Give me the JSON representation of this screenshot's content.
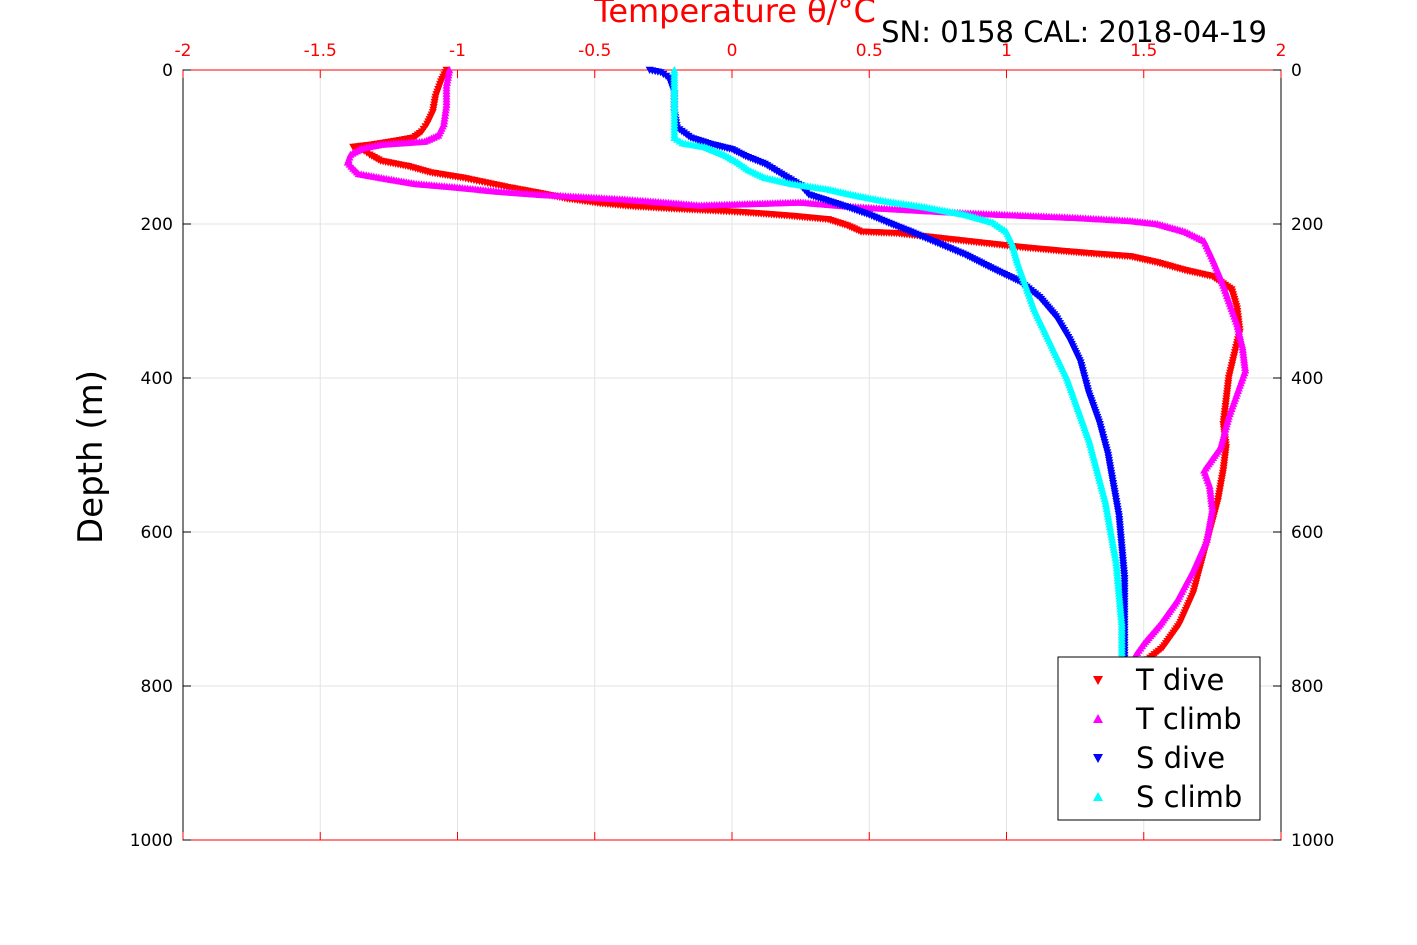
{
  "chart_data": {
    "type": "scatter",
    "title": "SN: 0158  CAL: 2018-04-19",
    "xlabel": "Temperature θ/°C",
    "ylabel": "Depth (m)",
    "xlim": [
      -2,
      2
    ],
    "ylim": [
      0,
      1000
    ],
    "y_reversed": true,
    "x_axis_position": "top",
    "x_axis_color": "#ff0000",
    "grid": true,
    "legend_position": "bottom-right",
    "x_ticks": [
      "-2",
      "-1.5",
      "-1",
      "-0.5",
      "0",
      "0.5",
      "1",
      "1.5",
      "2"
    ],
    "x_tick_values": [
      -2,
      -1.5,
      -1,
      -0.5,
      0,
      0.5,
      1,
      1.5,
      2
    ],
    "y_ticks": [
      "0",
      "200",
      "400",
      "600",
      "800",
      "1000"
    ],
    "y_tick_values": [
      0,
      200,
      400,
      600,
      800,
      1000
    ],
    "series": [
      {
        "name": "T dive",
        "color": "#ff0000",
        "marker": "triangle-down",
        "points": [
          [
            -1.04,
            0
          ],
          [
            -1.06,
            15
          ],
          [
            -1.08,
            35
          ],
          [
            -1.09,
            55
          ],
          [
            -1.11,
            70
          ],
          [
            -1.13,
            80
          ],
          [
            -1.16,
            88
          ],
          [
            -1.24,
            93
          ],
          [
            -1.31,
            97
          ],
          [
            -1.38,
            100
          ],
          [
            -1.34,
            105
          ],
          [
            -1.32,
            110
          ],
          [
            -1.28,
            118
          ],
          [
            -1.18,
            125
          ],
          [
            -1.1,
            133
          ],
          [
            -0.98,
            140
          ],
          [
            -0.9,
            146
          ],
          [
            -0.82,
            152
          ],
          [
            -0.7,
            160
          ],
          [
            -0.6,
            167
          ],
          [
            -0.48,
            173
          ],
          [
            -0.36,
            177
          ],
          [
            -0.22,
            180
          ],
          [
            -0.05,
            183
          ],
          [
            0.05,
            185
          ],
          [
            0.2,
            189
          ],
          [
            0.35,
            194
          ],
          [
            0.42,
            202
          ],
          [
            0.47,
            210
          ],
          [
            0.6,
            212
          ],
          [
            0.75,
            218
          ],
          [
            0.9,
            224
          ],
          [
            1.05,
            230
          ],
          [
            1.2,
            235
          ],
          [
            1.3,
            238
          ],
          [
            1.45,
            242
          ],
          [
            1.55,
            250
          ],
          [
            1.65,
            260
          ],
          [
            1.75,
            268
          ],
          [
            1.82,
            285
          ],
          [
            1.84,
            310
          ],
          [
            1.85,
            340
          ],
          [
            1.83,
            370
          ],
          [
            1.81,
            400
          ],
          [
            1.8,
            430
          ],
          [
            1.79,
            460
          ],
          [
            1.8,
            490
          ],
          [
            1.79,
            520
          ],
          [
            1.77,
            560
          ],
          [
            1.74,
            600
          ],
          [
            1.71,
            640
          ],
          [
            1.68,
            680
          ],
          [
            1.63,
            720
          ],
          [
            1.57,
            750
          ],
          [
            1.5,
            770
          ]
        ]
      },
      {
        "name": "T climb",
        "color": "#ff00ff",
        "marker": "triangle-up",
        "points": [
          [
            -1.03,
            0
          ],
          [
            -1.04,
            20
          ],
          [
            -1.04,
            45
          ],
          [
            -1.05,
            70
          ],
          [
            -1.07,
            85
          ],
          [
            -1.12,
            93
          ],
          [
            -1.28,
            97
          ],
          [
            -1.35,
            102
          ],
          [
            -1.39,
            110
          ],
          [
            -1.4,
            120
          ],
          [
            -1.38,
            128
          ],
          [
            -1.36,
            135
          ],
          [
            -1.25,
            142
          ],
          [
            -1.15,
            148
          ],
          [
            -1.02,
            152
          ],
          [
            -0.85,
            158
          ],
          [
            -0.7,
            162
          ],
          [
            -0.55,
            165
          ],
          [
            -0.4,
            168
          ],
          [
            -0.25,
            172
          ],
          [
            -0.12,
            176
          ],
          [
            0.25,
            172
          ],
          [
            0.45,
            178
          ],
          [
            0.65,
            182
          ],
          [
            0.85,
            186
          ],
          [
            1.05,
            189
          ],
          [
            1.25,
            192
          ],
          [
            1.45,
            196
          ],
          [
            1.55,
            200
          ],
          [
            1.65,
            210
          ],
          [
            1.72,
            222
          ],
          [
            1.75,
            245
          ],
          [
            1.78,
            270
          ],
          [
            1.81,
            300
          ],
          [
            1.84,
            330
          ],
          [
            1.86,
            360
          ],
          [
            1.87,
            390
          ],
          [
            1.84,
            420
          ],
          [
            1.81,
            450
          ],
          [
            1.78,
            490
          ],
          [
            1.72,
            520
          ],
          [
            1.74,
            540
          ],
          [
            1.75,
            570
          ],
          [
            1.73,
            610
          ],
          [
            1.68,
            650
          ],
          [
            1.62,
            690
          ],
          [
            1.56,
            720
          ],
          [
            1.5,
            745
          ],
          [
            1.47,
            760
          ]
        ]
      },
      {
        "name": "S dive",
        "color": "#0000ff",
        "marker": "triangle-down",
        "points": [
          [
            -0.3,
            0
          ],
          [
            -0.26,
            3
          ],
          [
            -0.23,
            10
          ],
          [
            -0.21,
            30
          ],
          [
            -0.21,
            55
          ],
          [
            -0.2,
            75
          ],
          [
            -0.15,
            88
          ],
          [
            -0.08,
            96
          ],
          [
            0.0,
            103
          ],
          [
            0.05,
            112
          ],
          [
            0.12,
            122
          ],
          [
            0.18,
            135
          ],
          [
            0.25,
            150
          ],
          [
            0.28,
            162
          ],
          [
            0.35,
            170
          ],
          [
            0.42,
            178
          ],
          [
            0.5,
            188
          ],
          [
            0.58,
            200
          ],
          [
            0.65,
            210
          ],
          [
            0.75,
            225
          ],
          [
            0.85,
            240
          ],
          [
            0.95,
            258
          ],
          [
            1.05,
            275
          ],
          [
            1.12,
            295
          ],
          [
            1.18,
            320
          ],
          [
            1.23,
            350
          ],
          [
            1.27,
            380
          ],
          [
            1.3,
            420
          ],
          [
            1.34,
            460
          ],
          [
            1.37,
            500
          ],
          [
            1.39,
            540
          ],
          [
            1.41,
            580
          ],
          [
            1.42,
            620
          ],
          [
            1.43,
            660
          ],
          [
            1.43,
            700
          ],
          [
            1.43,
            740
          ],
          [
            1.43,
            770
          ]
        ]
      },
      {
        "name": "S climb",
        "color": "#00ffff",
        "marker": "triangle-up",
        "points": [
          [
            -0.21,
            0
          ],
          [
            -0.21,
            20
          ],
          [
            -0.21,
            45
          ],
          [
            -0.21,
            70
          ],
          [
            -0.21,
            88
          ],
          [
            -0.18,
            95
          ],
          [
            -0.1,
            100
          ],
          [
            -0.03,
            110
          ],
          [
            0.02,
            120
          ],
          [
            0.06,
            130
          ],
          [
            0.12,
            140
          ],
          [
            0.22,
            148
          ],
          [
            0.35,
            155
          ],
          [
            0.45,
            163
          ],
          [
            0.55,
            170
          ],
          [
            0.7,
            178
          ],
          [
            0.85,
            188
          ],
          [
            0.95,
            198
          ],
          [
            1.0,
            210
          ],
          [
            1.02,
            225
          ],
          [
            1.04,
            250
          ],
          [
            1.07,
            280
          ],
          [
            1.1,
            310
          ],
          [
            1.14,
            340
          ],
          [
            1.18,
            370
          ],
          [
            1.22,
            400
          ],
          [
            1.26,
            440
          ],
          [
            1.3,
            480
          ],
          [
            1.33,
            520
          ],
          [
            1.36,
            560
          ],
          [
            1.38,
            600
          ],
          [
            1.4,
            640
          ],
          [
            1.41,
            680
          ],
          [
            1.42,
            720
          ],
          [
            1.42,
            760
          ]
        ]
      }
    ]
  }
}
